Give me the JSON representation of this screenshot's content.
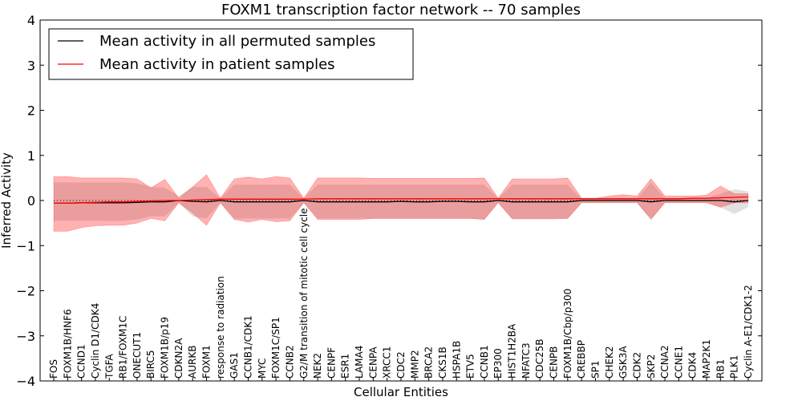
{
  "chart_data": {
    "type": "line",
    "title": "FOXM1 transcription factor network -- 70 samples",
    "xlabel": "Cellular Entities",
    "ylabel": "Inferred Activity",
    "ylim": [
      -4,
      4
    ],
    "yticks": [
      -4,
      -3,
      -2,
      -1,
      0,
      1,
      2,
      3,
      4
    ],
    "ytick_labels": [
      "−4",
      "−3",
      "−2",
      "−1",
      "0",
      "1",
      "2",
      "3",
      "4"
    ],
    "legend_position": "top-left",
    "categories": [
      "FOS",
      "FOXM1B/HNF6",
      "CCND1",
      "Cyclin D1/CDK4",
      "TGFA",
      "RB1/FOXM1C",
      "ONECUT1",
      "BIRC5",
      "FOXM1B/p19",
      "CDKN2A",
      "AURKB",
      "FOXM1",
      "response to radiation",
      "GAS1",
      "CCNB1/CDK1",
      "MYC",
      "FOXM1C/SP1",
      "CCNB2",
      "G2/M transition of mitotic cell cycle",
      "NEK2",
      "CENPF",
      "ESR1",
      "LAMA4",
      "CENPA",
      "XRCC1",
      "CDC2",
      "MMP2",
      "BRCA2",
      "CKS1B",
      "HSPA1B",
      "ETV5",
      "CCNB1",
      "EP300",
      "HIST1H2BA",
      "NFATC3",
      "CDC25B",
      "CENPB",
      "FOXM1B/Cbp/p300",
      "CREBBP",
      "SP1",
      "CHEK2",
      "GSK3A",
      "CDK2",
      "SKP2",
      "CCNA2",
      "CCNE1",
      "CDK4",
      "MAP2K1",
      "RB1",
      "PLK1",
      "Cyclin A-E1/CDK1-2"
    ],
    "series": [
      {
        "name": "Mean activity in all permuted samples",
        "color": "#000000",
        "values": [
          -0.06,
          -0.06,
          -0.05,
          -0.05,
          -0.05,
          -0.05,
          -0.04,
          -0.03,
          -0.03,
          0.0,
          -0.02,
          -0.03,
          0.0,
          -0.03,
          -0.03,
          -0.03,
          -0.03,
          -0.03,
          0.0,
          -0.03,
          -0.03,
          -0.03,
          -0.03,
          -0.03,
          -0.03,
          -0.02,
          -0.03,
          -0.03,
          -0.02,
          -0.02,
          -0.03,
          -0.03,
          0.0,
          -0.03,
          -0.03,
          -0.03,
          -0.03,
          -0.03,
          0.0,
          0.0,
          0.0,
          0.0,
          0.0,
          -0.03,
          0.0,
          0.0,
          0.0,
          0.0,
          0.0,
          -0.03,
          0.0
        ],
        "band_upper": [
          0.4,
          0.4,
          0.4,
          0.4,
          0.4,
          0.4,
          0.38,
          0.3,
          0.28,
          0.1,
          0.3,
          0.3,
          0.05,
          0.35,
          0.35,
          0.35,
          0.35,
          0.35,
          0.05,
          0.35,
          0.35,
          0.35,
          0.35,
          0.35,
          0.35,
          0.35,
          0.35,
          0.35,
          0.35,
          0.35,
          0.35,
          0.35,
          0.05,
          0.35,
          0.35,
          0.35,
          0.35,
          0.35,
          0.03,
          0.03,
          0.03,
          0.05,
          0.05,
          0.4,
          0.05,
          0.05,
          0.05,
          0.05,
          0.15,
          0.25,
          0.2
        ],
        "band_lower": [
          -0.45,
          -0.45,
          -0.45,
          -0.45,
          -0.45,
          -0.45,
          -0.42,
          -0.35,
          -0.35,
          -0.05,
          -0.35,
          -0.4,
          -0.05,
          -0.4,
          -0.4,
          -0.4,
          -0.4,
          -0.4,
          -0.05,
          -0.4,
          -0.4,
          -0.4,
          -0.4,
          -0.4,
          -0.4,
          -0.4,
          -0.4,
          -0.4,
          -0.4,
          -0.4,
          -0.4,
          -0.42,
          -0.05,
          -0.42,
          -0.42,
          -0.42,
          -0.42,
          -0.4,
          -0.05,
          -0.05,
          -0.05,
          -0.05,
          -0.05,
          -0.45,
          -0.05,
          -0.05,
          -0.05,
          -0.05,
          -0.15,
          -0.3,
          -0.15
        ]
      },
      {
        "name": "Mean activity in patient samples",
        "color": "#ff0000",
        "values": [
          -0.06,
          -0.06,
          -0.05,
          -0.04,
          -0.03,
          -0.03,
          -0.02,
          -0.01,
          0.0,
          0.0,
          0.01,
          0.02,
          0.03,
          0.03,
          0.03,
          0.03,
          0.03,
          0.03,
          0.03,
          0.04,
          0.04,
          0.04,
          0.04,
          0.04,
          0.04,
          0.04,
          0.04,
          0.04,
          0.04,
          0.04,
          0.04,
          0.04,
          0.04,
          0.04,
          0.04,
          0.04,
          0.04,
          0.04,
          0.04,
          0.04,
          0.04,
          0.04,
          0.04,
          0.04,
          0.04,
          0.04,
          0.05,
          0.05,
          0.06,
          0.07,
          0.08
        ],
        "band_upper": [
          0.53,
          0.53,
          0.5,
          0.5,
          0.5,
          0.5,
          0.48,
          0.28,
          0.47,
          0.05,
          0.3,
          0.57,
          0.05,
          0.48,
          0.52,
          0.48,
          0.53,
          0.5,
          0.05,
          0.5,
          0.5,
          0.5,
          0.5,
          0.49,
          0.49,
          0.49,
          0.49,
          0.49,
          0.49,
          0.49,
          0.49,
          0.5,
          0.05,
          0.48,
          0.48,
          0.48,
          0.48,
          0.5,
          0.05,
          0.05,
          0.1,
          0.13,
          0.1,
          0.48,
          0.1,
          0.1,
          0.1,
          0.12,
          0.32,
          0.15,
          0.15
        ],
        "band_lower": [
          -0.68,
          -0.68,
          -0.6,
          -0.56,
          -0.55,
          -0.55,
          -0.5,
          -0.4,
          -0.45,
          -0.05,
          -0.28,
          -0.55,
          -0.05,
          -0.42,
          -0.48,
          -0.42,
          -0.47,
          -0.45,
          -0.05,
          -0.42,
          -0.42,
          -0.42,
          -0.42,
          -0.4,
          -0.4,
          -0.4,
          -0.4,
          -0.4,
          -0.4,
          -0.4,
          -0.4,
          -0.42,
          -0.05,
          -0.4,
          -0.4,
          -0.4,
          -0.4,
          -0.4,
          -0.05,
          -0.05,
          -0.05,
          -0.05,
          -0.05,
          -0.4,
          -0.05,
          -0.05,
          -0.05,
          -0.05,
          -0.15,
          -0.05,
          -0.05
        ]
      }
    ],
    "reference_line": {
      "y": 0,
      "style": "dotted"
    }
  }
}
